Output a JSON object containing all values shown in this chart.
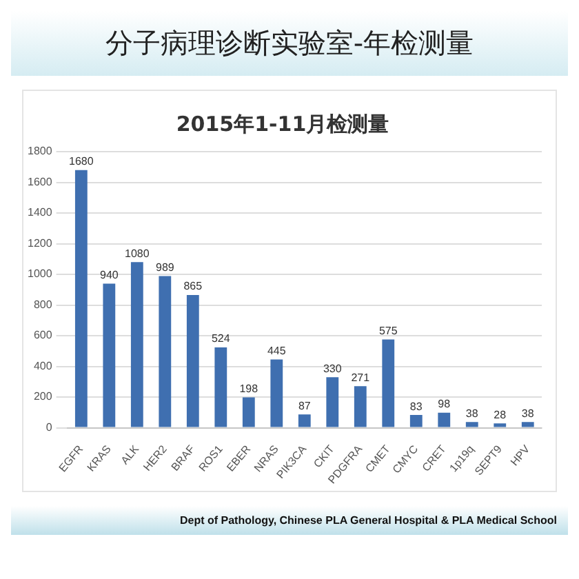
{
  "chart_data": {
    "type": "bar",
    "title": "分子病理诊断实验室-年检测量",
    "subtitle": "2015年1-11月检测量",
    "categories": [
      "EGFR",
      "KRAS",
      "ALK",
      "HER2",
      "BRAF",
      "ROS1",
      "EBER",
      "NRAS",
      "PIK3CA",
      "CKIT",
      "PDGFRA",
      "CMET",
      "CMYC",
      "CRET",
      "1p19q",
      "SEPT9",
      "HPV"
    ],
    "values": [
      1680,
      940,
      1080,
      989,
      865,
      524,
      198,
      445,
      87,
      330,
      271,
      575,
      83,
      98,
      38,
      28,
      38
    ],
    "color": "#3f6fb0",
    "ylim": [
      0,
      1800
    ],
    "yticks": [
      0,
      200,
      400,
      600,
      800,
      1000,
      1200,
      1400,
      1600,
      1800
    ],
    "grid": "y",
    "data_labels": true,
    "annotations": [
      "Dept of Pathology, Chinese PLA General Hospital & PLA Medical School"
    ]
  }
}
